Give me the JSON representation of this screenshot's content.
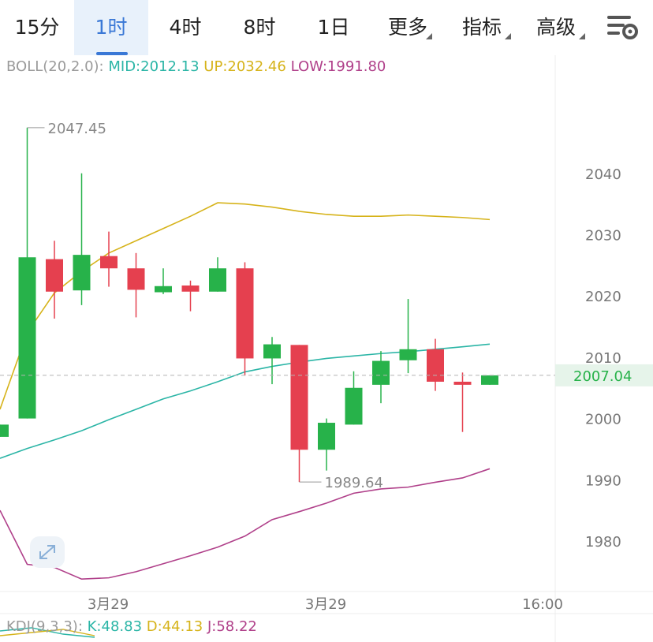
{
  "tabs": [
    {
      "label": "15分",
      "active": false,
      "dropdown": false
    },
    {
      "label": "1时",
      "active": true,
      "dropdown": false
    },
    {
      "label": "4时",
      "active": false,
      "dropdown": false
    },
    {
      "label": "8时",
      "active": false,
      "dropdown": false
    },
    {
      "label": "1日",
      "active": false,
      "dropdown": false
    },
    {
      "label": "更多",
      "active": false,
      "dropdown": true
    },
    {
      "label": "指标",
      "active": false,
      "dropdown": true
    },
    {
      "label": "高级",
      "active": false,
      "dropdown": true
    }
  ],
  "settings_icon": "settings-gear-icon",
  "boll": {
    "name": "BOLL(20,2.0):",
    "mid": "MID:2012.13",
    "up": "UP:2032.46",
    "low": "LOW:1991.80",
    "colors": {
      "name": "#9a9a9a",
      "mid": "#2bb5a6",
      "up": "#d6b31a",
      "low": "#b0408a"
    }
  },
  "kdj": {
    "name": "KDJ(9,3,3):",
    "k": "K:48.83",
    "d": "D:44.13",
    "j": "J:58.22",
    "colors": {
      "name": "#9a9a9a",
      "k": "#2bb5a6",
      "d": "#d6b31a",
      "j": "#b0408a"
    }
  },
  "chart_data": {
    "type": "candlestick",
    "ylim": [
      1974,
      2054
    ],
    "y_ticks": [
      1980,
      1990,
      2000,
      2010,
      2020,
      2030,
      2040
    ],
    "x_tick_labels": [
      "3月29",
      "3月29",
      "16:00"
    ],
    "last_price": "2007.04",
    "max_label": "2047.45",
    "min_label": "1989.64",
    "colors": {
      "up": "#27b24a",
      "down": "#e5404f",
      "mid": "#2bb5a6",
      "upper": "#d6b31a",
      "lower": "#b0408a",
      "last": "#9a9a9a"
    },
    "candles": [
      {
        "open": 1997.0,
        "close": 1999.0,
        "high": 1999.0,
        "low": 1997.0
      },
      {
        "open": 2000.0,
        "close": 2026.3,
        "high": 2047.45,
        "low": 2000.0
      },
      {
        "open": 2026.0,
        "close": 2020.7,
        "high": 2029.0,
        "low": 2016.3
      },
      {
        "open": 2020.9,
        "close": 2026.7,
        "high": 2040.0,
        "low": 2018.5
      },
      {
        "open": 2026.5,
        "close": 2024.5,
        "high": 2030.5,
        "low": 2021.5
      },
      {
        "open": 2024.5,
        "close": 2021.0,
        "high": 2027.0,
        "low": 2016.5
      },
      {
        "open": 2020.6,
        "close": 2021.6,
        "high": 2024.5,
        "low": 2020.3
      },
      {
        "open": 2021.7,
        "close": 2020.7,
        "high": 2022.5,
        "low": 2017.5
      },
      {
        "open": 2020.7,
        "close": 2024.5,
        "high": 2026.3,
        "low": 2020.7
      },
      {
        "open": 2024.5,
        "close": 2009.8,
        "high": 2025.5,
        "low": 2007.0
      },
      {
        "open": 2009.8,
        "close": 2012.1,
        "high": 2013.3,
        "low": 2005.6
      },
      {
        "open": 2012.0,
        "close": 1994.9,
        "high": 2012.0,
        "low": 1989.64
      },
      {
        "open": 1994.9,
        "close": 1999.3,
        "high": 2000.0,
        "low": 1991.5
      },
      {
        "open": 1999.0,
        "close": 2005.0,
        "high": 2007.7,
        "low": 1999.0
      },
      {
        "open": 2005.5,
        "close": 2009.4,
        "high": 2011.0,
        "low": 2002.5
      },
      {
        "open": 2009.5,
        "close": 2011.3,
        "high": 2019.5,
        "low": 2007.4
      },
      {
        "open": 2011.3,
        "close": 2006.0,
        "high": 2013.0,
        "low": 2004.5
      },
      {
        "open": 2006.0,
        "close": 2005.5,
        "high": 2007.5,
        "low": 1997.8
      },
      {
        "open": 2005.5,
        "close": 2007.04,
        "high": 2007.04,
        "low": 2005.5
      }
    ],
    "mid_line": [
      1993.5,
      1995.1,
      1996.5,
      1998.0,
      1999.8,
      2001.5,
      2003.2,
      2004.5,
      2006.0,
      2007.6,
      2008.5,
      2009.2,
      2009.8,
      2010.2,
      2010.6,
      2010.9,
      2011.3,
      2011.7,
      2012.13
    ],
    "upper_line": [
      2001.5,
      2014.0,
      2020.5,
      2024.0,
      2027.0,
      2029.0,
      2031.0,
      2033.0,
      2035.2,
      2035.0,
      2034.5,
      2033.8,
      2033.3,
      2033.0,
      2033.0,
      2033.2,
      2033.0,
      2032.8,
      2032.46
    ],
    "lower_line": [
      1985.0,
      1976.2,
      1975.7,
      1973.8,
      1974.0,
      1975.0,
      1976.3,
      1977.6,
      1979.0,
      1980.8,
      1983.5,
      1984.8,
      1986.2,
      1987.8,
      1988.5,
      1988.8,
      1989.6,
      1990.3,
      1991.8
    ]
  }
}
